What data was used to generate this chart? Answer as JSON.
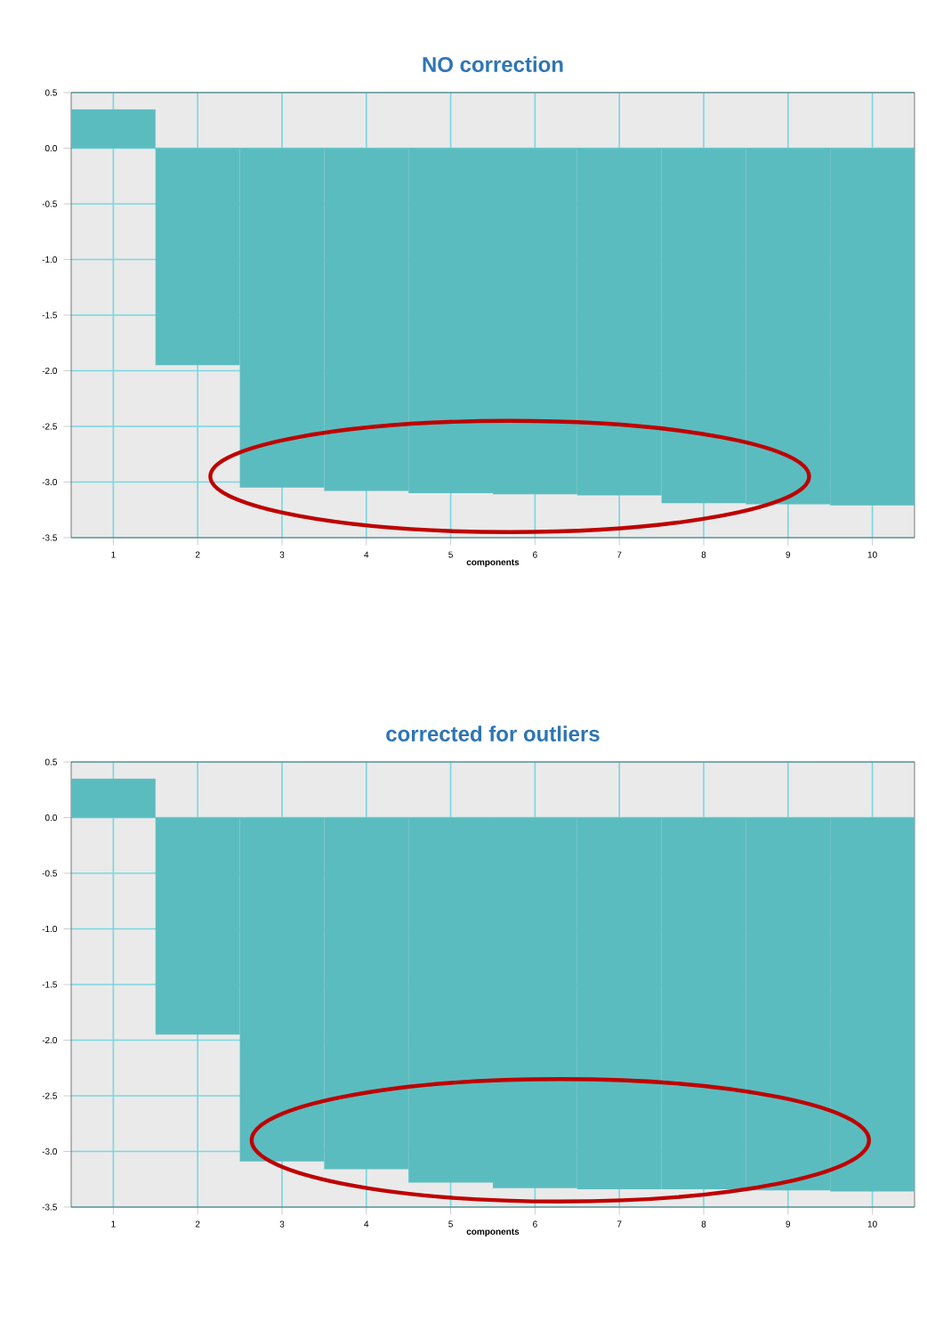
{
  "chart_data": [
    {
      "type": "bar",
      "title": "NO correction",
      "xlabel": "components",
      "categories": [
        "1",
        "2",
        "3",
        "4",
        "5",
        "6",
        "7",
        "8",
        "9",
        "10"
      ],
      "values": [
        0.35,
        -1.95,
        -3.05,
        -3.08,
        -3.1,
        -3.11,
        -3.12,
        -3.19,
        -3.2,
        -3.21
      ],
      "color": "#5bbcbf",
      "ylim": [
        -3.5,
        0.5
      ],
      "yticks": [
        {
          "value": -3.5,
          "label": "-3.5"
        },
        {
          "value": -3.0,
          "label": "-3.0"
        },
        {
          "value": -2.5,
          "label": "-2.5"
        },
        {
          "value": -2.0,
          "label": "-2.0"
        },
        {
          "value": -1.5,
          "label": "-1.5"
        },
        {
          "value": -1.0,
          "label": "-1.0"
        },
        {
          "value": -0.5,
          "label": "-0.5"
        },
        {
          "value": 0.0,
          "label": "0.0"
        },
        {
          "value": 0.5,
          "label": "0.5"
        }
      ],
      "grid": true
    },
    {
      "type": "bar",
      "title": "corrected for outliers",
      "xlabel": "components",
      "categories": [
        "1",
        "2",
        "3",
        "4",
        "5",
        "6",
        "7",
        "8",
        "9",
        "10"
      ],
      "values": [
        0.35,
        -1.95,
        -3.09,
        -3.16,
        -3.28,
        -3.33,
        -3.34,
        -3.34,
        -3.35,
        -3.36
      ],
      "color": "#5bbcbf",
      "ylim": [
        -3.5,
        0.5
      ],
      "yticks": [
        {
          "value": -3.5,
          "label": "-3.5"
        },
        {
          "value": -3.0,
          "label": "-3.0"
        },
        {
          "value": -2.5,
          "label": "-2.5"
        },
        {
          "value": -2.0,
          "label": "-2.0"
        },
        {
          "value": -1.5,
          "label": "-1.5"
        },
        {
          "value": -1.0,
          "label": "-1.0"
        },
        {
          "value": -0.5,
          "label": "-0.5"
        },
        {
          "value": 0.0,
          "label": "0.0"
        },
        {
          "value": 0.5,
          "label": "0.5"
        }
      ],
      "grid": true
    }
  ]
}
